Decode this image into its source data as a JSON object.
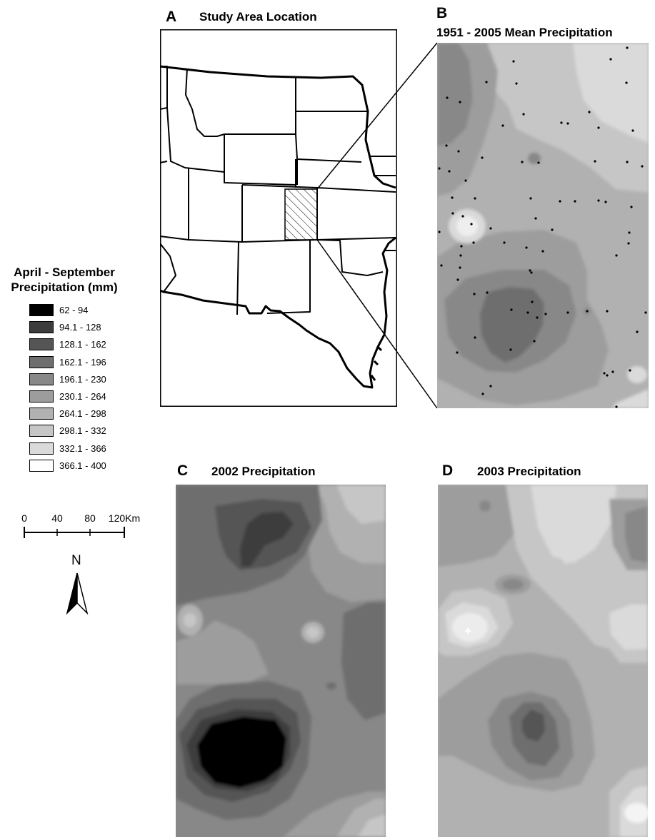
{
  "panels": {
    "a": {
      "letter": "A",
      "title": "Study Area Location"
    },
    "b": {
      "letter": "B",
      "title": "1951 - 2005 Mean Precipitation"
    },
    "c": {
      "letter": "C",
      "title": "2002 Precipitation"
    },
    "d": {
      "letter": "D",
      "title": "2003 Precipitation"
    }
  },
  "legend": {
    "title_line1": "April - September",
    "title_line2": "Precipitation (mm)",
    "classes": [
      {
        "range": "62 - 94",
        "color": "#000000"
      },
      {
        "range": "94.1 - 128",
        "color": "#3c3c3c"
      },
      {
        "range": "128.1 - 162",
        "color": "#555555"
      },
      {
        "range": "162.1 - 196",
        "color": "#6e6e6e"
      },
      {
        "range": "196.1 - 230",
        "color": "#888888"
      },
      {
        "range": "230.1 - 264",
        "color": "#9d9d9d"
      },
      {
        "range": "264.1 - 298",
        "color": "#b1b1b1"
      },
      {
        "range": "298.1 - 332",
        "color": "#c6c6c6"
      },
      {
        "range": "332.1 - 366",
        "color": "#dadada"
      },
      {
        "range": "366.1 - 400",
        "color": "#ffffff"
      }
    ]
  },
  "scale_bar": {
    "labels": [
      "0",
      "40",
      "80",
      "120Km"
    ]
  },
  "north_arrow": {
    "label": "N"
  }
}
